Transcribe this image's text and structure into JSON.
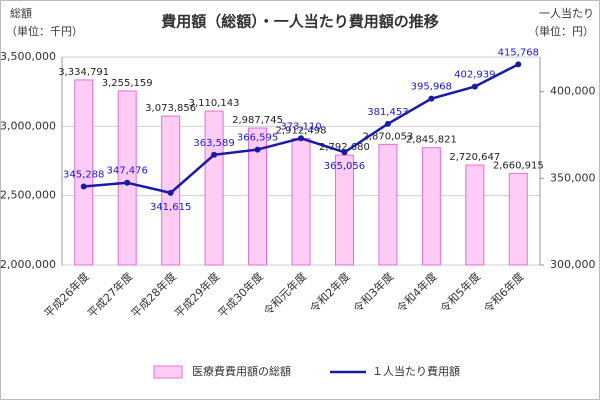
{
  "chart_data": {
    "type": "bar",
    "title": "費用額（総額）・一人当たり費用額の推移",
    "y_title": "総額",
    "y_unit": "（単位：千円）",
    "y2_title": "一人当たり",
    "y2_unit": "（単位：円）",
    "categories": [
      "平成26年度",
      "平成27年度",
      "平成28年度",
      "平成29年度",
      "平成30年度",
      "令和元年度",
      "令和2年度",
      "令和3年度",
      "令和4年度",
      "令和5年度",
      "令和6年度"
    ],
    "series": [
      {
        "name": "医療費費用額の総額",
        "type": "bar",
        "color": "#ffccf5",
        "stroke": "#e070d8",
        "values": [
          3334791,
          3255159,
          3073856,
          3110143,
          2987745,
          2912498,
          2792680,
          2870053,
          2845821,
          2720647,
          2660915
        ],
        "value_labels": [
          "3,334,791",
          "3,255,159",
          "3,073,856",
          "3,110,143",
          "2,987,745",
          "2,912,498",
          "2,792,680",
          "2,870,053",
          "2,845,821",
          "2,720,647",
          "2,660,915"
        ]
      },
      {
        "name": "１人当たり費用額",
        "type": "line",
        "axis": "y2",
        "color": "#1a1aa8",
        "values": [
          345288,
          347476,
          341615,
          363589,
          366595,
          373110,
          365056,
          381453,
          395968,
          402939,
          415768
        ],
        "value_labels": [
          "345,288",
          "347,476",
          "341,615",
          "363,589",
          "366,595",
          "373,110",
          "365,056",
          "381,453",
          "395,968",
          "402,939",
          "415,768"
        ]
      }
    ],
    "ylim": [
      2000000,
      3500000
    ],
    "yticks": [
      {
        "value": 2000000,
        "label": "2,000,000"
      },
      {
        "value": 2500000,
        "label": "2,500,000"
      },
      {
        "value": 3000000,
        "label": "3,000,000"
      },
      {
        "value": 3500000,
        "label": "3,500,000"
      }
    ],
    "y2lim": [
      300000,
      420000
    ],
    "y2ticks": [
      {
        "value": 300000,
        "label": "300,000"
      },
      {
        "value": 350000,
        "label": "350,000"
      },
      {
        "value": 400000,
        "label": "400,000"
      }
    ],
    "grid": true
  }
}
